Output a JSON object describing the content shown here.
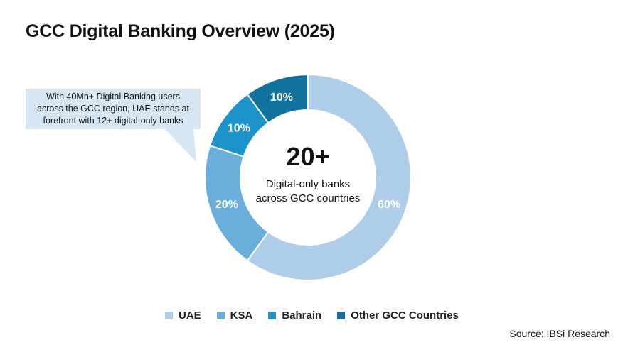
{
  "title": "GCC Digital Banking Overview (2025)",
  "callout": {
    "lines": [
      "With 40Mn+ Digital Banking users",
      "across the GCC region, UAE stands at",
      "forefront with 12+ digital-only banks"
    ]
  },
  "center": {
    "value": "20+",
    "lines": [
      "Digital-only banks",
      "across GCC countries"
    ]
  },
  "source": "Source: IBSi Research",
  "chart_data": {
    "type": "pie",
    "subtype": "donut",
    "title": "GCC Digital Banking Overview (2025)",
    "unit": "%",
    "legend_position": "bottom",
    "series": [
      {
        "name": "UAE",
        "value": 60,
        "label": "60%",
        "color": "#aecde8"
      },
      {
        "name": "KSA",
        "value": 20,
        "label": "20%",
        "color": "#6aaedc"
      },
      {
        "name": "Bahrain",
        "value": 10,
        "label": "10%",
        "color": "#1d93cb"
      },
      {
        "name": "Other GCC Countries",
        "value": 10,
        "label": "10%",
        "color": "#11729e"
      }
    ]
  }
}
